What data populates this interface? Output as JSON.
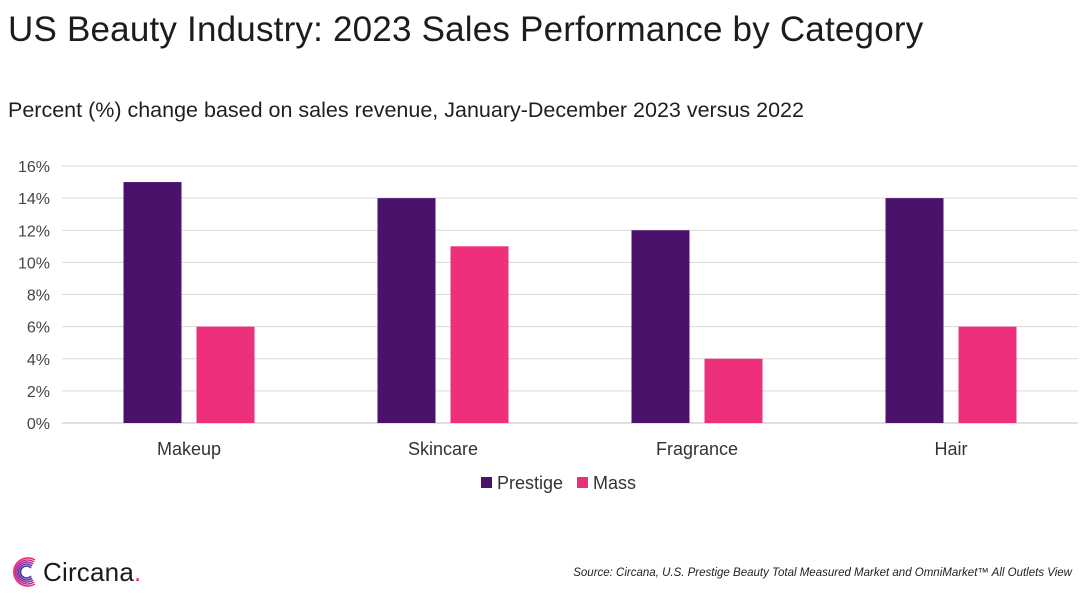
{
  "page": {
    "title": "US Beauty Industry: 2023 Sales Performance by Category",
    "subtitle": "Percent (%) change based on sales revenue, January-December 2023 versus 2022",
    "source": "Source: Circana, U.S. Prestige Beauty Total Measured Market and OmniMarket™ All Outlets View",
    "logo_text": "Circana",
    "logo_dot": "."
  },
  "colors": {
    "prestige": "#4a126b",
    "mass": "#ee2f7b",
    "grid": "#d9d9d9",
    "logo_accent": "#e8307a"
  },
  "chart_data": {
    "type": "bar",
    "title": "US Beauty Industry: 2023 Sales Performance by Category",
    "subtitle": "Percent (%) change based on sales revenue, January-December 2023 versus 2022",
    "xlabel": "",
    "ylabel": "",
    "ylim": [
      0,
      16
    ],
    "yticks": [
      0,
      2,
      4,
      6,
      8,
      10,
      12,
      14,
      16
    ],
    "ytick_suffix": "%",
    "grid": true,
    "legend_position": "bottom-center",
    "categories": [
      "Makeup",
      "Skincare",
      "Fragrance",
      "Hair"
    ],
    "series": [
      {
        "name": "Prestige",
        "values": [
          15,
          14,
          12,
          14
        ]
      },
      {
        "name": "Mass",
        "values": [
          6,
          11,
          4,
          6
        ]
      }
    ]
  }
}
